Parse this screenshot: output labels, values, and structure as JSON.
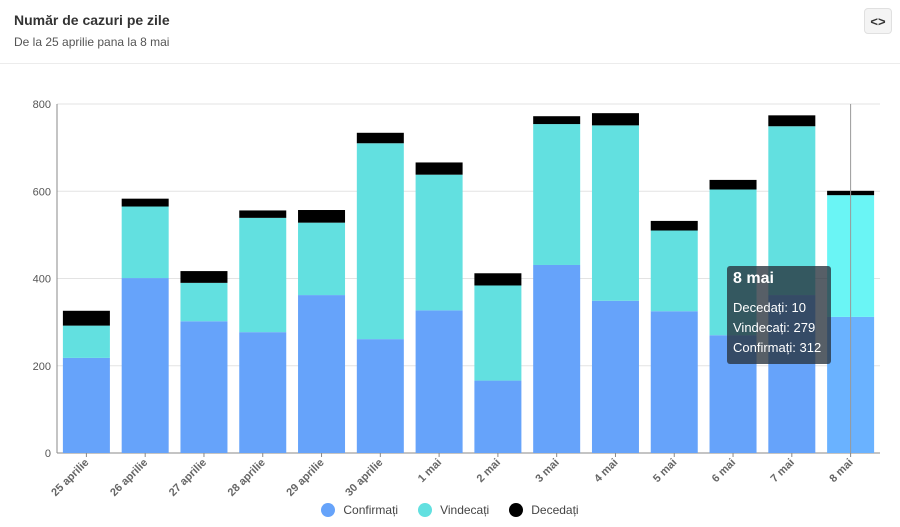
{
  "header": {
    "title": "Număr de cazuri pe zile",
    "subtitle": "De la 25 aprilie pana la 8 mai",
    "embed_label": "<>"
  },
  "colors": {
    "confirmati": "#66a3fa",
    "vindecati": "#62e0e0",
    "decedati": "#000000",
    "confirmati_hover": "#6ab2ff",
    "vindecati_hover": "#6af5f5"
  },
  "chart_data": {
    "type": "bar",
    "stacked": true,
    "title": "Număr de cazuri pe zile",
    "subtitle": "De la 25 aprilie pana la 8 mai",
    "categories": [
      "25 aprilie",
      "26 aprilie",
      "27 aprilie",
      "28 aprilie",
      "29 aprilie",
      "30 aprilie",
      "1 mai",
      "2 mai",
      "3 mai",
      "4 mai",
      "5 mai",
      "6 mai",
      "7 mai",
      "8 mai"
    ],
    "series": [
      {
        "name": "Confirmați",
        "values": [
          218,
          401,
          302,
          277,
          362,
          261,
          327,
          166,
          431,
          349,
          325,
          270,
          362,
          312
        ]
      },
      {
        "name": "Vindecați",
        "values": [
          74,
          164,
          88,
          262,
          166,
          449,
          311,
          218,
          323,
          402,
          185,
          334,
          387,
          279
        ]
      },
      {
        "name": "Decedați",
        "values": [
          34,
          18,
          27,
          17,
          29,
          24,
          28,
          28,
          18,
          28,
          22,
          22,
          25,
          10
        ]
      }
    ],
    "yticks": [
      0,
      200,
      400,
      600,
      800
    ],
    "ylim": [
      0,
      800
    ],
    "xlabel": "",
    "ylabel": "",
    "grid": true,
    "legend": "bottom-center",
    "highlight_index": 13
  },
  "legend": {
    "items": [
      {
        "label": "Confirmați"
      },
      {
        "label": "Vindecați"
      },
      {
        "label": "Decedați"
      }
    ]
  },
  "tooltip": {
    "title": "8 mai",
    "rows": [
      {
        "label": "Decedați",
        "value": "10"
      },
      {
        "label": "Vindecați",
        "value": "279"
      },
      {
        "label": "Confirmați",
        "value": "312"
      }
    ]
  }
}
